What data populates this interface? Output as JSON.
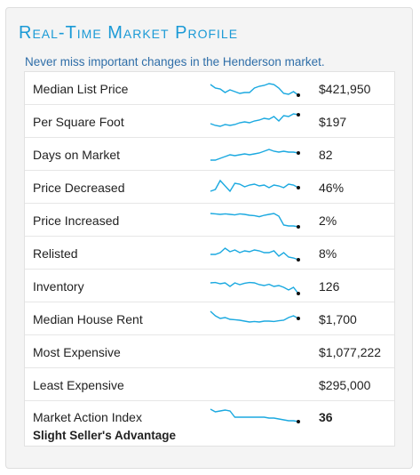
{
  "header": {
    "title": "Real-Time Market Profile",
    "subtitle": "Never miss important changes in the Henderson market."
  },
  "colors": {
    "accent": "#1b9ad6",
    "subtitle": "#2f6ea8",
    "sparkline": "#1ba9e0"
  },
  "rows": [
    {
      "label": "Median List Price",
      "value": "$421,950",
      "trend": [
        0.75,
        0.55,
        0.5,
        0.3,
        0.45,
        0.35,
        0.25,
        0.3,
        0.3,
        0.55,
        0.65,
        0.7,
        0.8,
        0.75,
        0.55,
        0.25,
        0.2,
        0.35,
        0.15
      ]
    },
    {
      "label": "Per Square Foot",
      "value": "$197",
      "trend": [
        0.4,
        0.3,
        0.25,
        0.35,
        0.3,
        0.35,
        0.45,
        0.5,
        0.45,
        0.55,
        0.6,
        0.7,
        0.65,
        0.8,
        0.55,
        0.85,
        0.8,
        0.95,
        0.9
      ]
    },
    {
      "label": "Days on Market",
      "value": "82",
      "trend": [
        0.2,
        0.2,
        0.3,
        0.4,
        0.5,
        0.45,
        0.5,
        0.55,
        0.5,
        0.55,
        0.6,
        0.7,
        0.8,
        0.7,
        0.65,
        0.7,
        0.65,
        0.65,
        0.6
      ]
    },
    {
      "label": "Price Decreased",
      "value": "46%",
      "trend": [
        0.3,
        0.4,
        0.9,
        0.6,
        0.3,
        0.75,
        0.7,
        0.55,
        0.65,
        0.7,
        0.6,
        0.65,
        0.5,
        0.65,
        0.6,
        0.5,
        0.7,
        0.65,
        0.5
      ]
    },
    {
      "label": "Price Increased",
      "value": "2%",
      "trend": [
        0.9,
        0.88,
        0.85,
        0.88,
        0.85,
        0.82,
        0.88,
        0.85,
        0.8,
        0.78,
        0.72,
        0.8,
        0.85,
        0.9,
        0.75,
        0.25,
        0.2,
        0.2,
        0.15
      ]
    },
    {
      "label": "Relisted",
      "value": "8%",
      "trend": [
        0.45,
        0.45,
        0.55,
        0.8,
        0.6,
        0.7,
        0.55,
        0.65,
        0.6,
        0.7,
        0.65,
        0.55,
        0.55,
        0.65,
        0.35,
        0.55,
        0.3,
        0.25,
        0.15
      ]
    },
    {
      "label": "Inventory",
      "value": "126",
      "trend": [
        0.7,
        0.72,
        0.65,
        0.7,
        0.5,
        0.7,
        0.6,
        0.68,
        0.72,
        0.7,
        0.6,
        0.55,
        0.62,
        0.5,
        0.55,
        0.45,
        0.3,
        0.45,
        0.1
      ]
    },
    {
      "label": "Median House Rent",
      "value": "$1,700",
      "trend": [
        0.95,
        0.7,
        0.55,
        0.6,
        0.5,
        0.48,
        0.45,
        0.4,
        0.35,
        0.38,
        0.35,
        0.4,
        0.4,
        0.38,
        0.42,
        0.45,
        0.6,
        0.7,
        0.55
      ]
    },
    {
      "label": "Most Expensive",
      "value": "$1,077,222",
      "trend": []
    },
    {
      "label": "Least Expensive",
      "value": "$295,000",
      "trend": []
    }
  ],
  "index_row": {
    "label": "Market Action Index",
    "value": "36",
    "status": "Slight Seller's Advantage",
    "trend": [
      0.95,
      0.8,
      0.85,
      0.9,
      0.85,
      0.5,
      0.5,
      0.5,
      0.5,
      0.5,
      0.5,
      0.5,
      0.45,
      0.45,
      0.4,
      0.35,
      0.3,
      0.3,
      0.25
    ]
  }
}
